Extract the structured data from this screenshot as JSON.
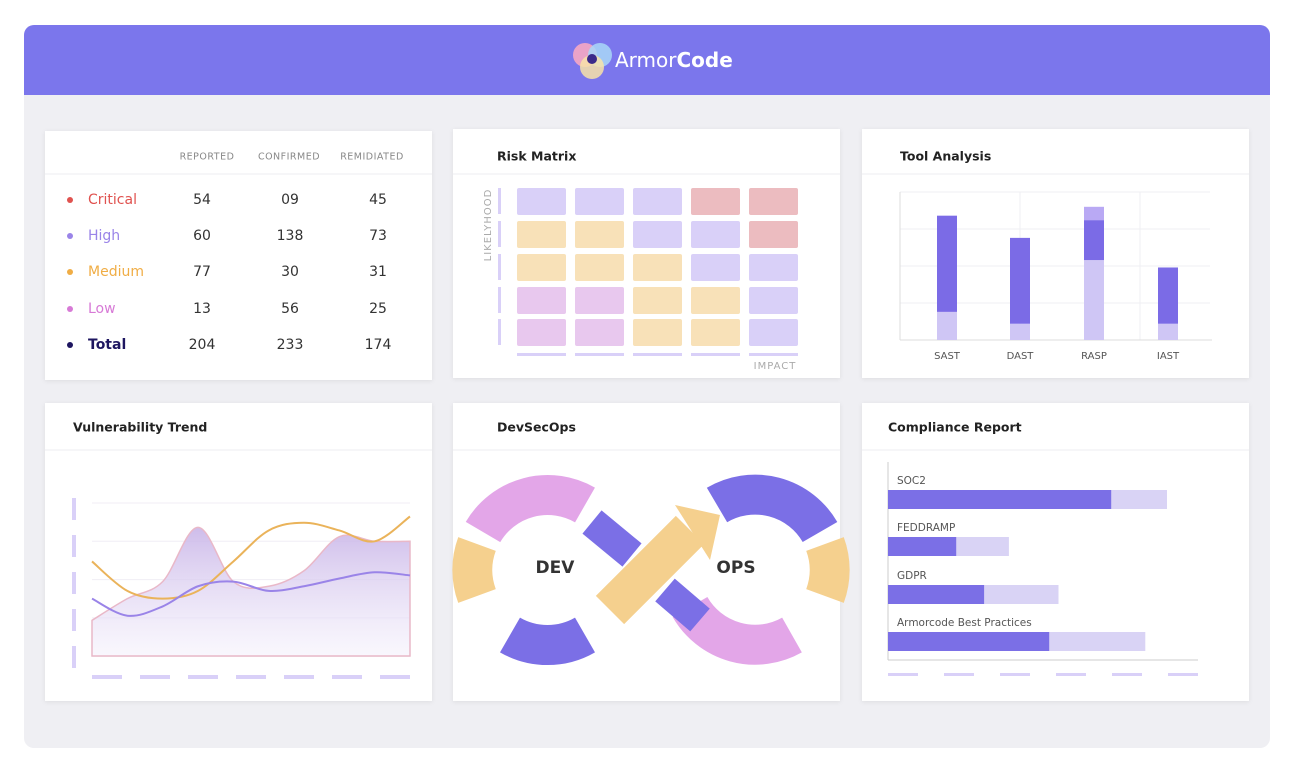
{
  "header": {
    "brand_light": "Armor",
    "brand_bold": "Code"
  },
  "severity_table": {
    "columns": [
      "REPORTED",
      "CONFIRMED",
      "REMIDIATED"
    ],
    "rows": [
      {
        "label": "Critical",
        "color": "#e0524f",
        "values": [
          "54",
          "09",
          "45"
        ]
      },
      {
        "label": "High",
        "color": "#9a84e8",
        "values": [
          "60",
          "138",
          "73"
        ]
      },
      {
        "label": "Medium",
        "color": "#f0ad45",
        "values": [
          "77",
          "30",
          "31"
        ]
      },
      {
        "label": "Low",
        "color": "#d77ad6",
        "values": [
          "13",
          "56",
          "25"
        ]
      },
      {
        "label": "Total",
        "color": "#1e1660",
        "values": [
          "204",
          "233",
          "174"
        ]
      }
    ]
  },
  "risk_matrix": {
    "title": "Risk Matrix",
    "y_label": "LIKELYHOOD",
    "x_label": "IMPACT",
    "cells": [
      [
        "#d9d0f8",
        "#d9d0f8",
        "#d9d0f8",
        "#ecbcc0",
        "#ecbcc0"
      ],
      [
        "#f8e1b8",
        "#f8e1b8",
        "#d9d0f8",
        "#d9d0f8",
        "#ecbcc0"
      ],
      [
        "#f8e1b8",
        "#f8e1b8",
        "#f8e1b8",
        "#d9d0f8",
        "#d9d0f8"
      ],
      [
        "#e8c8ee",
        "#e8c8ee",
        "#f8e1b8",
        "#f8e1b8",
        "#d9d0f8"
      ],
      [
        "#e8c8ee",
        "#e8c8ee",
        "#f8e1b8",
        "#f8e1b8",
        "#d9d0f8"
      ]
    ]
  },
  "tool_analysis": {
    "title": "Tool Analysis",
    "categories": [
      "SAST",
      "DAST",
      "RASP",
      "IAST"
    ],
    "ylim": [
      0,
      100
    ],
    "series": [
      {
        "color": "#cfc6f5",
        "values": [
          19,
          11,
          54,
          11
        ]
      },
      {
        "color": "#7b6be6",
        "values": [
          65,
          58,
          27,
          38
        ]
      },
      {
        "color": "#b9a9f4",
        "values": [
          0,
          0,
          9,
          0
        ]
      }
    ]
  },
  "vulnerability_trend": {
    "title": "Vulnerability Trend",
    "ylim": [
      0,
      100
    ],
    "series": [
      {
        "kind": "area",
        "color": "#e9b8c8",
        "values": [
          23,
          37,
          48,
          83,
          48,
          45,
          55,
          77,
          74,
          74
        ]
      },
      {
        "kind": "line",
        "color": "#eab35a",
        "values": [
          61,
          42,
          37,
          42,
          61,
          81,
          86,
          81,
          74,
          90
        ]
      },
      {
        "kind": "line",
        "color": "#9a84e8",
        "values": [
          37,
          26,
          32,
          45,
          48,
          42,
          45,
          50,
          54,
          52
        ]
      }
    ]
  },
  "devsecops": {
    "title": "DevSecOps",
    "left": "DEV",
    "right": "OPS"
  },
  "compliance_report": {
    "title": "Compliance Report",
    "categories": [
      "SOC2",
      "FEDDRAMP",
      "GDPR",
      "Armorcode Best Practices"
    ],
    "xlim": [
      0,
      100
    ],
    "series": [
      {
        "color": "#d9d3f5",
        "values": [
          90,
          39,
          55,
          83
        ]
      },
      {
        "color": "#7b6fe6",
        "values": [
          72,
          22,
          31,
          52
        ]
      }
    ]
  }
}
